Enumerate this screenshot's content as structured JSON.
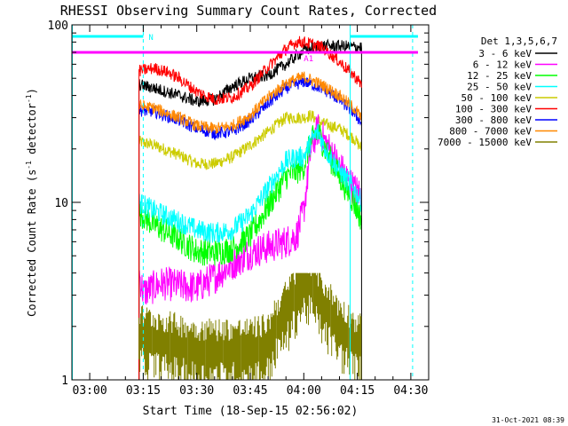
{
  "chart_data": {
    "type": "line",
    "title": "RHESSI Observing Summary Count Rates, Corrected",
    "xlabel": "Start Time (18-Sep-15 02:56:02)",
    "ylabel_prefix": "Corrected Count Rate (s",
    "ylabel_sup1": "-1",
    "ylabel_mid": " detector",
    "ylabel_sup2": "-1",
    "ylabel_suffix": ")",
    "yscale": "log",
    "ylim": [
      1,
      100
    ],
    "xlim_min": [
      -5,
      95
    ],
    "x_ticks": [
      {
        "min": 0,
        "label": "03:00"
      },
      {
        "min": 15,
        "label": "03:15"
      },
      {
        "min": 30,
        "label": "03:30"
      },
      {
        "min": 45,
        "label": "03:45"
      },
      {
        "min": 60,
        "label": "04:00"
      },
      {
        "min": 75,
        "label": "04:15"
      },
      {
        "min": 90,
        "label": "04:30"
      }
    ],
    "y_ticks": [
      {
        "value": 1,
        "label": "1"
      },
      {
        "value": 10,
        "label": "10"
      },
      {
        "value": 100,
        "label": "100"
      }
    ],
    "legend_title": "Det 1,3,5,6,7",
    "legend_position": "right",
    "series": [
      {
        "name": "3 - 6 keV",
        "color": "#000000",
        "x": [
          13.8,
          18,
          25,
          30,
          35,
          40,
          45,
          50,
          55,
          60,
          65,
          70,
          75,
          76.2
        ],
        "y": [
          46,
          44,
          40,
          37,
          38,
          45,
          50,
          52,
          60,
          72,
          76,
          76,
          75,
          75
        ]
      },
      {
        "name": "6 - 12 keV",
        "color": "#ff00ff",
        "x": [
          13.8,
          15,
          20,
          25,
          30,
          35,
          40,
          45,
          50,
          55,
          58,
          60,
          62,
          64,
          66,
          70,
          74,
          76.2
        ],
        "y": [
          4.0,
          3.1,
          3.5,
          3.4,
          3.3,
          3.8,
          4.5,
          5.2,
          5.6,
          6.0,
          6.5,
          9,
          20,
          26,
          22,
          16,
          12,
          11
        ]
      },
      {
        "name": "12 - 25 keV",
        "color": "#00ff00",
        "x": [
          13.8,
          18,
          25,
          30,
          35,
          40,
          45,
          50,
          55,
          58,
          60,
          62,
          64,
          66,
          70,
          74,
          76.2
        ],
        "y": [
          8.8,
          7.5,
          6.2,
          5.3,
          5.2,
          5.5,
          6.5,
          9.5,
          14,
          15,
          16,
          22,
          25,
          20,
          14,
          10,
          8
        ]
      },
      {
        "name": "25 - 50 keV",
        "color": "#00ffff",
        "x": [
          13.8,
          18,
          25,
          30,
          35,
          40,
          45,
          50,
          55,
          58,
          60,
          62,
          64,
          66,
          70,
          74,
          76.2
        ],
        "y": [
          10,
          9,
          7.8,
          7.0,
          6.7,
          7.0,
          8.5,
          12,
          17,
          18,
          18,
          22,
          25,
          20,
          15,
          12,
          10
        ]
      },
      {
        "name": "50 - 100 keV",
        "color": "#cccc00",
        "x": [
          13.8,
          18,
          25,
          30,
          35,
          40,
          45,
          50,
          55,
          60,
          62,
          65,
          70,
          74,
          76.2
        ],
        "y": [
          22,
          21,
          18.5,
          16.5,
          16.5,
          18,
          21,
          25,
          30,
          30,
          31,
          28,
          26,
          23,
          20
        ]
      },
      {
        "name": "100 - 300 keV",
        "color": "#ff0000",
        "x": [
          13.8,
          18,
          22,
          25,
          30,
          35,
          40,
          45,
          50,
          55,
          58,
          60,
          62,
          65,
          70,
          74,
          76.2
        ],
        "y": [
          55,
          57,
          54,
          50,
          42,
          38,
          39,
          45,
          58,
          73,
          80,
          80,
          78,
          75,
          62,
          52,
          46
        ]
      },
      {
        "name": "300 - 800 keV",
        "color": "#0000ff",
        "x": [
          13.8,
          18,
          25,
          30,
          35,
          40,
          45,
          50,
          55,
          60,
          65,
          70,
          74,
          76.2
        ],
        "y": [
          33,
          32.5,
          29,
          26,
          24.5,
          25,
          29,
          36,
          44,
          48,
          44,
          38,
          32,
          28
        ]
      },
      {
        "name": "800 - 7000 keV",
        "color": "#ff8800",
        "x": [
          13.8,
          18,
          25,
          30,
          35,
          40,
          45,
          50,
          55,
          60,
          65,
          70,
          74,
          76.2
        ],
        "y": [
          35,
          34,
          30,
          27,
          26,
          27,
          31,
          39,
          47,
          51,
          46,
          40,
          34,
          30
        ]
      },
      {
        "name": "7000 - 15000 keV",
        "color": "#808000",
        "x": [
          13.8,
          30,
          40,
          45,
          50,
          52,
          56,
          58,
          60,
          62,
          64,
          66,
          70,
          74,
          76.2
        ],
        "y": [
          1.8,
          1.5,
          1.5,
          1.5,
          1.6,
          2.0,
          2.6,
          3.2,
          3.6,
          3.5,
          3.0,
          2.6,
          2.0,
          1.7,
          1.6
        ]
      }
    ],
    "markers": [
      {
        "label": "N",
        "color": "#00ffff"
      },
      {
        "label": "A1",
        "color": "#ff00ff"
      }
    ],
    "timestamp": "31-Oct-2021 08:39"
  }
}
